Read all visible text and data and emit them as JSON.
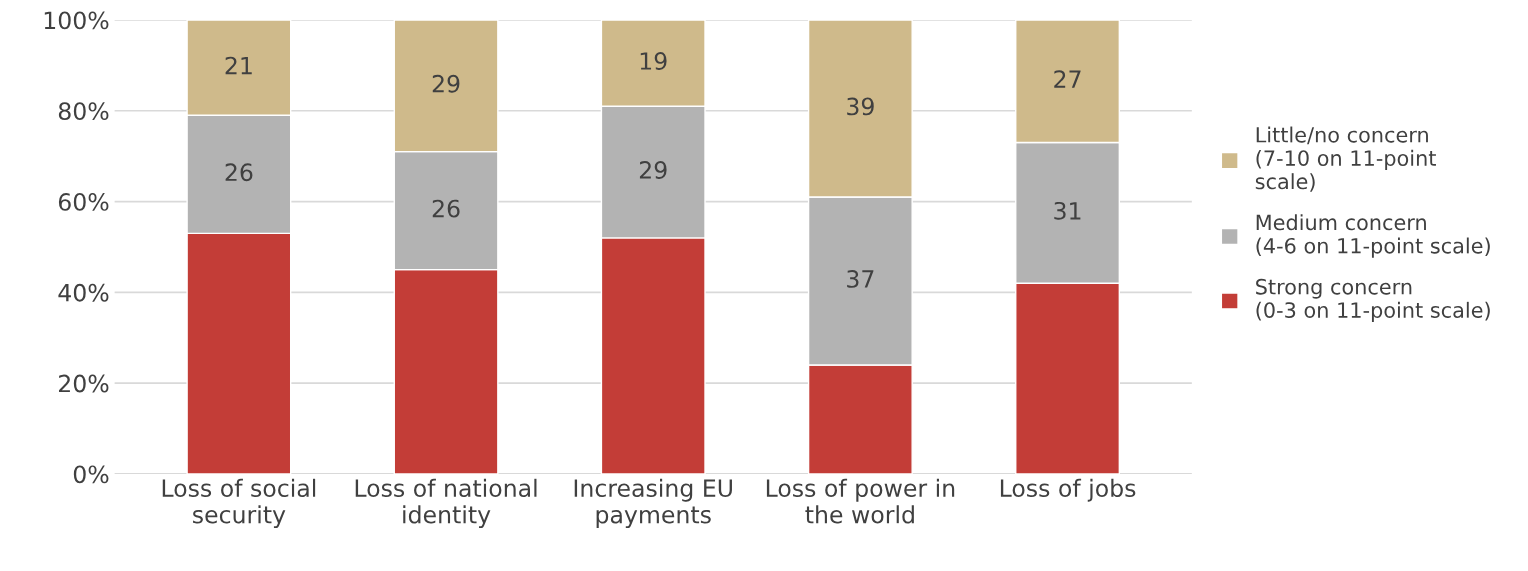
{
  "chart_data": {
    "type": "bar",
    "stacked": true,
    "categories": [
      "Loss of social\nsecurity",
      "Loss of national\nidentity",
      "Increasing EU\npayments",
      "Loss of power in\nthe world",
      "Loss of jobs"
    ],
    "series": [
      {
        "name": "Strong concern\n(0-3 on 11-point scale)",
        "color": "#c33d37",
        "values": [
          53,
          45,
          52,
          24,
          42
        ],
        "value_labels": [
          null,
          null,
          null,
          null,
          null
        ]
      },
      {
        "name": "Medium concern\n(4-6 on 11-point scale)",
        "color": "#b3b3b3",
        "values": [
          26,
          26,
          29,
          37,
          31
        ],
        "value_labels": [
          "26",
          "26",
          "29",
          "37",
          "31"
        ]
      },
      {
        "name": "Little/no concern\n(7-10 on 11-point\nscale)",
        "color": "#cfba8b",
        "values": [
          21,
          29,
          19,
          39,
          27
        ],
        "value_labels": [
          "21",
          "29",
          "19",
          "39",
          "27"
        ]
      }
    ],
    "ylim": [
      0,
      100
    ],
    "yticks": [
      {
        "value": 0,
        "label": "0%"
      },
      {
        "value": 20,
        "label": "20%"
      },
      {
        "value": 40,
        "label": "40%"
      },
      {
        "value": 60,
        "label": "60%"
      },
      {
        "value": 80,
        "label": "80%"
      },
      {
        "value": 100,
        "label": "100%"
      }
    ],
    "grid": "y",
    "legend": "right"
  }
}
